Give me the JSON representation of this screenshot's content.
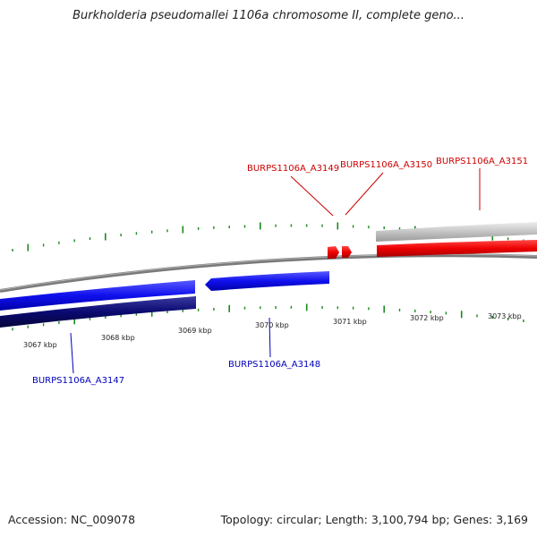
{
  "title": "Burkholderia pseudomallei 1106a chromosome II, complete geno...",
  "footer": {
    "accession": "Accession: NC_009078",
    "summary": "Topology: circular; Length: 3,100,794 bp; Genes: 3,169"
  },
  "colors": {
    "forward_gene": "#ee0000",
    "reverse_gene": "#1010ee",
    "reverse_gene_dark": "#0a0a70",
    "forward_gene_grey": "#c8c8c8",
    "backbone": "#808080",
    "tick": "#1a8a1a",
    "forward_label": "#cc0000",
    "reverse_label": "#0000bb",
    "scale_label": "#222222"
  },
  "scale_labels": [
    "3067 kbp",
    "3068 kbp",
    "3069 kbp",
    "3070 kbp",
    "3071 kbp",
    "3072 kbp",
    "3073 kbp"
  ],
  "forward_gene_labels": [
    "BURPS1106A_A3149",
    "BURPS1106A_A3150",
    "BURPS1106A_A3151"
  ],
  "reverse_gene_labels": [
    "BURPS1106A_A3147",
    "BURPS1106A_A3148"
  ]
}
